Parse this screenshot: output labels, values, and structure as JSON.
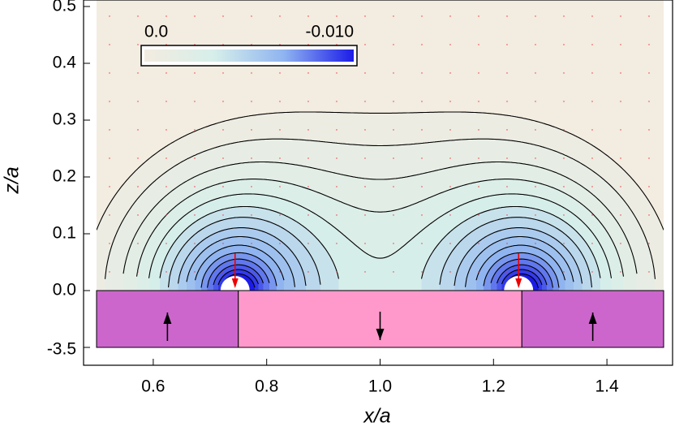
{
  "chart_data": {
    "type": "contour",
    "xlabel": "x/a",
    "ylabel": "z/a",
    "xlim": [
      0.5,
      1.5
    ],
    "ylim": [
      0,
      0.5
    ],
    "xticks": [
      0.6,
      0.8,
      {
        "value": 1,
        "label": "1.0"
      },
      1.2,
      1.4
    ],
    "yticks": [
      {
        "value": 0,
        "label": "0.0"
      },
      0.1,
      0.2,
      0.3,
      0.4,
      0.5
    ],
    "magnet_ticks": [
      -3.5
    ],
    "colorbar": {
      "ticks": [
        {
          "value": 0,
          "label": "0.0"
        },
        {
          "value": -0.01,
          "label": "-0.010"
        }
      ],
      "colors": [
        "#f3ece0",
        "#d6eeea",
        "#8fb4f0",
        "#1c1ce8"
      ]
    },
    "magnets": [
      {
        "xlim": [
          0.5,
          0.75
        ],
        "direction": "up",
        "color": "#cc66cc"
      },
      {
        "xlim": [
          0.75,
          1.25
        ],
        "direction": "down",
        "color": "#ff99cc"
      },
      {
        "xlim": [
          1.25,
          1.5
        ],
        "direction": "up",
        "color": "#cc66cc"
      }
    ]
  }
}
